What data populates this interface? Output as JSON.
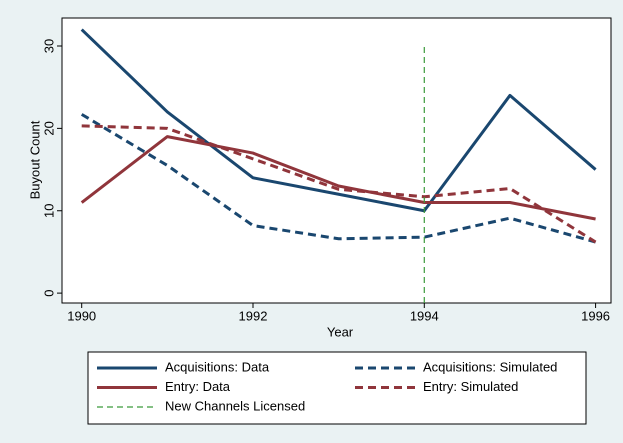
{
  "chart_data": {
    "type": "line",
    "x_label": "Year",
    "y_label": "Buyout Count",
    "x": [
      1990,
      1991,
      1992,
      1993,
      1994,
      1995,
      1996
    ],
    "xlim": [
      1989.77,
      1996.18
    ],
    "ylim": [
      -1.2,
      33.4
    ],
    "xticks": [
      1990,
      1992,
      1994,
      1996
    ],
    "yticks": [
      0,
      10,
      20,
      30
    ],
    "series": [
      {
        "name": "Acquisitions: Data",
        "color": "#1a476f",
        "style": "solid",
        "values": [
          32,
          22,
          14,
          12,
          10,
          24,
          15
        ]
      },
      {
        "name": "Acquisitions: Simulated",
        "color": "#1a476f",
        "style": "dash",
        "values": [
          21.7,
          15.5,
          8.2,
          6.6,
          6.8,
          9.1,
          6.2
        ]
      },
      {
        "name": "Entry: Data",
        "color": "#90353b",
        "style": "solid",
        "values": [
          11,
          19,
          17,
          13,
          11,
          11,
          9
        ]
      },
      {
        "name": "Entry: Simulated",
        "color": "#90353b",
        "style": "dash",
        "values": [
          20.3,
          20,
          16.3,
          12.6,
          11.7,
          12.7,
          6.2
        ]
      },
      {
        "name": "New Channels Licensed",
        "color": "#3a9a3a",
        "style": "thin-dash",
        "x": [
          1994,
          1994
        ],
        "values": [
          -1.2,
          30
        ]
      }
    ]
  }
}
